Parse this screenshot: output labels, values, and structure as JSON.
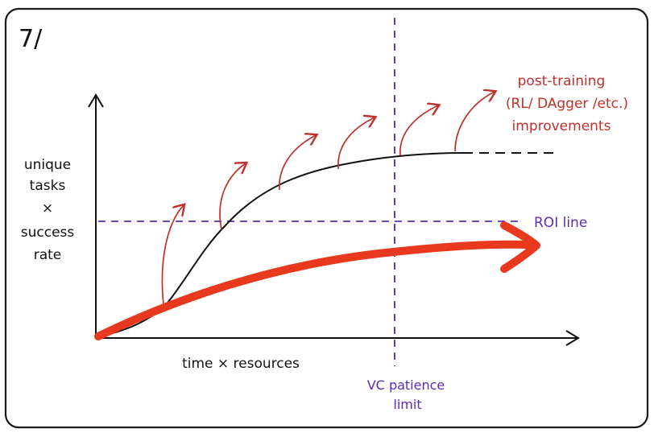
{
  "slide_number": "7/",
  "y_axis_label": {
    "line1": "unique",
    "line2": "tasks",
    "line3": "×",
    "line4": "success",
    "line5": "rate"
  },
  "x_axis_label": "time × resources",
  "roi_label": "ROI line",
  "vc_label": {
    "line1": "VC patience",
    "line2": "limit"
  },
  "post_training_label": {
    "line1": "post-training",
    "line2": "(RL/ DAgger /etc.)",
    "line3": "improvements"
  },
  "colors": {
    "ink": "#111111",
    "frame": "#1a1a1a",
    "red_accent": "#c0302b",
    "red_curve": "#e8391e",
    "purple": "#5b2db3"
  }
}
